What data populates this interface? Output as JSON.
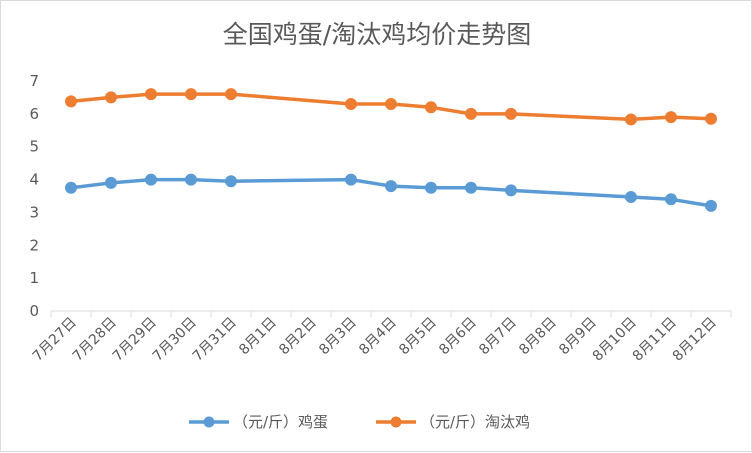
{
  "chart_data": {
    "type": "line",
    "title": "全国鸡蛋/淘汰鸡均价走势图",
    "xlabel": "",
    "ylabel": "",
    "categories": [
      "7月27日",
      "7月28日",
      "7月29日",
      "7月30日",
      "7月31日",
      "8月1日",
      "8月2日",
      "8月3日",
      "8月4日",
      "8月5日",
      "8月6日",
      "8月7日",
      "8月8日",
      "8月9日",
      "8月10日",
      "8月11日",
      "8月12日"
    ],
    "series": [
      {
        "name": "（元/斤）鸡蛋",
        "color": "#5b9bd5",
        "values": [
          3.75,
          3.9,
          4.0,
          4.0,
          3.95,
          null,
          null,
          4.0,
          3.8,
          3.75,
          3.75,
          3.67,
          null,
          null,
          3.47,
          3.4,
          3.2
        ]
      },
      {
        "name": "（元/斤）淘汰鸡",
        "color": "#ed7d31",
        "values": [
          6.38,
          6.5,
          6.6,
          6.6,
          6.6,
          null,
          null,
          6.3,
          6.3,
          6.2,
          6.0,
          6.0,
          null,
          null,
          5.83,
          5.9,
          5.85
        ]
      }
    ],
    "ylim": [
      0,
      7
    ],
    "yticks": [
      0,
      1,
      2,
      3,
      4,
      5,
      6,
      7
    ],
    "grid": false,
    "legend_position": "bottom"
  }
}
